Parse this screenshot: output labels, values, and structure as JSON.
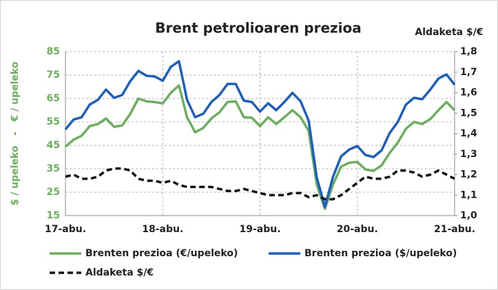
{
  "chart_data": {
    "type": "line",
    "title": "Brent petrolioaren prezioa",
    "y_label": "$ / upeleko   -   € / upeleko",
    "y2_label": "Aldaketa $/€",
    "categories": [
      "17-abu.",
      null,
      null,
      null,
      null,
      null,
      null,
      null,
      null,
      null,
      null,
      null,
      "18-abu.",
      null,
      null,
      null,
      null,
      null,
      null,
      null,
      null,
      null,
      null,
      null,
      "19-abu.",
      null,
      null,
      null,
      null,
      null,
      null,
      null,
      null,
      null,
      null,
      null,
      "20-abu.",
      null,
      null,
      null,
      null,
      null,
      null,
      null,
      null,
      null,
      null,
      null,
      "21-abu."
    ],
    "series": [
      {
        "name": "Brenten prezioa (€/upeleko)",
        "color": "#6aaf5c",
        "line_style": "solid",
        "values": [
          44.4,
          47.4,
          49.1,
          53.2,
          54.1,
          56.5,
          52.9,
          53.5,
          58.5,
          65,
          63.8,
          63.5,
          62.9,
          67.4,
          70.6,
          57,
          50.6,
          52.4,
          56.5,
          59.1,
          63.5,
          63.8,
          57,
          56.8,
          53.2,
          57,
          54.1,
          57,
          60,
          57,
          51.2,
          28.2,
          17.9,
          28.2,
          35.9,
          37.6,
          37.9,
          34.7,
          34.1,
          36.5,
          41.8,
          46.2,
          52.1,
          55,
          54.1,
          56.2,
          60,
          63.5,
          60
        ]
      },
      {
        "name": "Brenten prezioa ($/upeleko)",
        "color": "#1a5fc0",
        "line_style": "solid",
        "values": [
          51.8,
          56,
          57,
          62.4,
          64.4,
          68.8,
          65.3,
          66.5,
          72.4,
          76.8,
          74.7,
          74.4,
          72.6,
          78.5,
          80.9,
          64.4,
          57,
          58.5,
          63.5,
          66.5,
          71.2,
          71.2,
          64.1,
          63.5,
          59.4,
          63,
          60,
          63.5,
          67.4,
          63.8,
          55.6,
          31.2,
          18.8,
          31.5,
          40.3,
          43.2,
          44.7,
          40.9,
          40,
          42.9,
          50.3,
          55,
          62.4,
          65.3,
          64.7,
          68.8,
          73.5,
          75.3,
          70.9
        ]
      },
      {
        "name": "Aldaketa $/€",
        "color": "#111111",
        "line_style": "dashed",
        "axis": "y2",
        "values": [
          1.19,
          1.2,
          1.18,
          1.18,
          1.19,
          1.22,
          1.23,
          1.23,
          1.22,
          1.18,
          1.17,
          1.17,
          1.16,
          1.17,
          1.15,
          1.14,
          1.14,
          1.14,
          1.14,
          1.13,
          1.12,
          1.12,
          1.13,
          1.12,
          1.11,
          1.1,
          1.1,
          1.1,
          1.11,
          1.11,
          1.09,
          1.1,
          1.08,
          1.08,
          1.1,
          1.13,
          1.16,
          1.19,
          1.18,
          1.18,
          1.19,
          1.22,
          1.22,
          1.21,
          1.19,
          1.2,
          1.22,
          1.2,
          1.18
        ]
      }
    ],
    "ylim": [
      15,
      85
    ],
    "yticks": [
      15,
      25,
      35,
      45,
      55,
      65,
      75,
      85
    ],
    "ytick_color": "#6aaf5c",
    "y2lim": [
      1.0,
      1.8
    ],
    "y2ticks": [
      {
        "value": 1.0,
        "label": "1,0"
      },
      {
        "value": 1.1,
        "label": "1,1"
      },
      {
        "value": 1.2,
        "label": "1,2"
      },
      {
        "value": 1.3,
        "label": "1,3"
      },
      {
        "value": 1.4,
        "label": "1,4"
      },
      {
        "value": 1.5,
        "label": "1,5"
      },
      {
        "value": 1.6,
        "label": "1,6"
      },
      {
        "value": 1.7,
        "label": "1,7"
      },
      {
        "value": 1.8,
        "label": "1,8"
      }
    ],
    "grid": true,
    "legend": "bottom"
  }
}
